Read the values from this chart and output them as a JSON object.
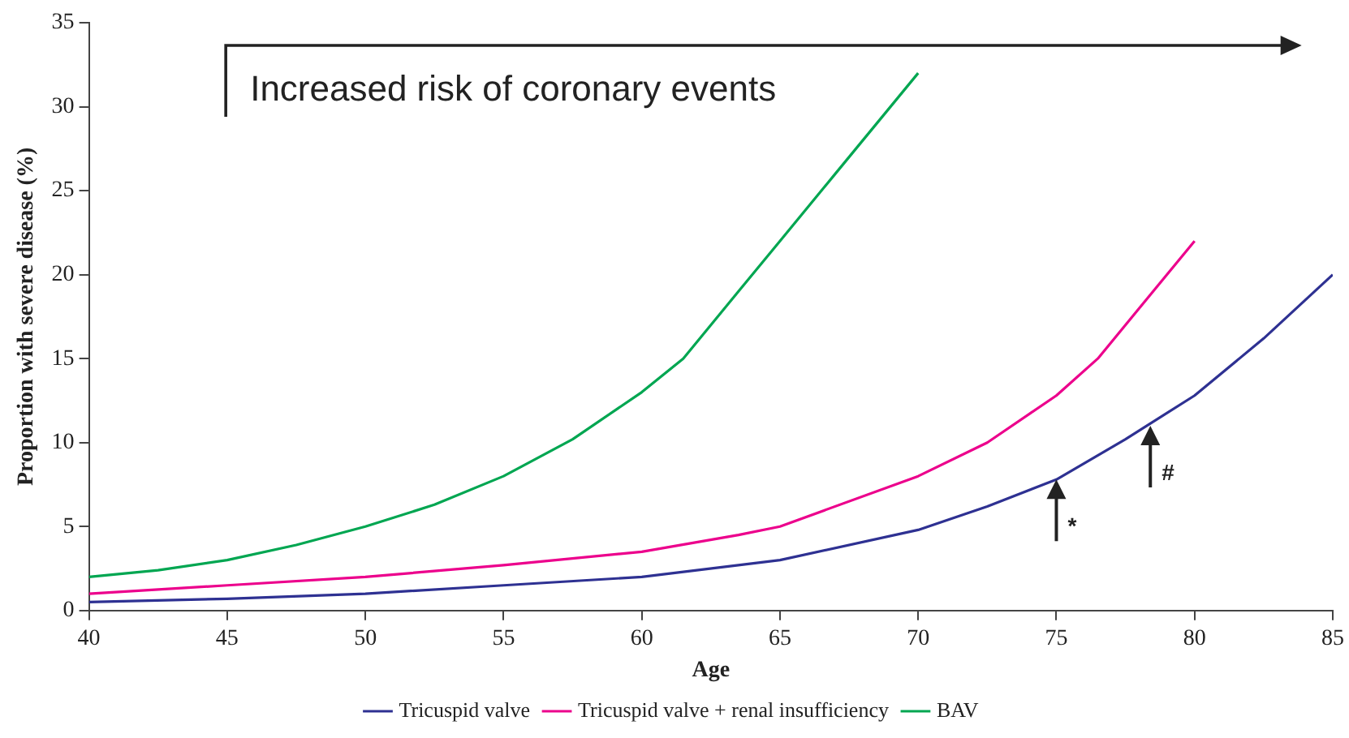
{
  "chart_data": {
    "type": "line",
    "xlabel": "Age",
    "ylabel": "Proportion with severe disease (%)",
    "xlim": [
      40,
      85
    ],
    "xticks": [
      40,
      45,
      50,
      55,
      60,
      65,
      70,
      75,
      80,
      85
    ],
    "ylim": [
      0,
      35
    ],
    "yticks": [
      0,
      5,
      10,
      15,
      20,
      25,
      30,
      35
    ],
    "grid": false,
    "legend": "bottom",
    "marker": "none",
    "line_style": "solid",
    "series": [
      {
        "name": "Tricuspid valve",
        "color": "#2e3192",
        "x": [
          40,
          45,
          50,
          55,
          60,
          65,
          70,
          72.5,
          75,
          77.5,
          80,
          82.5,
          85
        ],
        "values": [
          0.5,
          0.7,
          1.0,
          1.5,
          2.0,
          3.0,
          4.8,
          6.2,
          7.8,
          10.2,
          12.8,
          16.2,
          20
        ]
      },
      {
        "name": "Tricuspid valve + renal insufficiency",
        "color": "#ec008c",
        "x": [
          40,
          45,
          50,
          55,
          60,
          63.5,
          65,
          70,
          72.5,
          75,
          76.5,
          78,
          80
        ],
        "values": [
          1.0,
          1.5,
          2.0,
          2.7,
          3.5,
          4.5,
          5.0,
          8.0,
          10,
          12.8,
          15,
          18,
          22
        ]
      },
      {
        "name": "BAV",
        "color": "#00a651",
        "x": [
          40,
          42.5,
          45,
          47.5,
          50,
          52.5,
          55,
          57.5,
          60,
          61.5,
          63.5,
          65,
          67,
          70
        ],
        "values": [
          2.0,
          2.4,
          3.0,
          3.9,
          5.0,
          6.3,
          8.0,
          10.2,
          13.0,
          15,
          19,
          22,
          26,
          32
        ]
      }
    ],
    "annotations": [
      "Increased risk of coronary events",
      {
        "text": "*",
        "x": 75,
        "y": 7.8
      },
      {
        "text": "#",
        "x": 78.4,
        "y": 11
      }
    ]
  }
}
